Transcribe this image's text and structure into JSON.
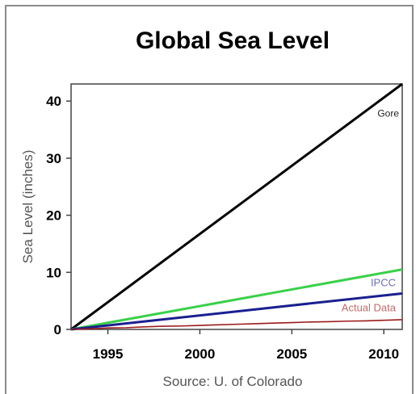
{
  "chart_data": {
    "type": "line",
    "title": "Global Sea Level",
    "xlabel": "Source: U. of Colorado",
    "ylabel": "Sea Level (inches)",
    "xlim": [
      1993,
      2011
    ],
    "ylim": [
      0,
      43
    ],
    "x_ticks": [
      1995,
      2000,
      2005,
      2010
    ],
    "y_ticks": [
      0,
      10,
      20,
      30,
      40
    ],
    "grid": false,
    "series": [
      {
        "name": "Gore",
        "color": "#000000",
        "x": [
          1993,
          2011
        ],
        "values": [
          0,
          43
        ]
      },
      {
        "name": "",
        "color": "#3ad04a",
        "x": [
          1993,
          2011
        ],
        "values": [
          0,
          10.5
        ]
      },
      {
        "name": "IPCC",
        "color": "#1a1f8f",
        "x": [
          1993,
          2011
        ],
        "values": [
          0,
          6.3
        ]
      },
      {
        "name": "Actual Data",
        "color": "#9b1b1b",
        "x": [
          1993,
          1994,
          1995,
          1996,
          1997,
          1998,
          1999,
          2000,
          2001,
          2002,
          2003,
          2004,
          2005,
          2006,
          2007,
          2008,
          2009,
          2010,
          2011
        ],
        "values": [
          0,
          0.1,
          0.25,
          0.3,
          0.45,
          0.55,
          0.6,
          0.7,
          0.8,
          0.9,
          1.0,
          1.1,
          1.2,
          1.3,
          1.35,
          1.45,
          1.5,
          1.6,
          1.7
        ]
      }
    ]
  }
}
